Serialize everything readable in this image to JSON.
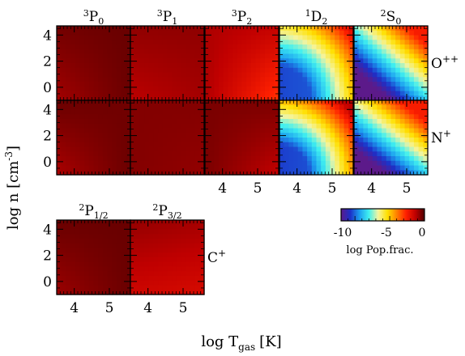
{
  "figure": {
    "ylabel_main": "log n [cm",
    "ylabel_sup": "-3",
    "ylabel_close": "]",
    "xlabel_main": "log T",
    "xlabel_sub": "gas",
    "xlabel_unit": "[K]",
    "colorbar_label": "log Pop.frac.",
    "colorbar_ticks": [
      "-10",
      "-5",
      "0"
    ]
  },
  "chart_data": {
    "type": "heatmap",
    "x": {
      "label": "log T_gas [K]",
      "range": [
        3.5,
        5.6
      ],
      "ticks": [
        4,
        5
      ]
    },
    "y": {
      "label": "log n [cm^-3]",
      "range": [
        -1,
        4.7
      ],
      "ticks": [
        0,
        2,
        4
      ]
    },
    "colorbar": {
      "label": "log Pop.frac.",
      "range": [
        -12,
        0
      ],
      "ticks": [
        -10,
        -5,
        0
      ],
      "colors": [
        "#5c1a8a",
        "#1c30c8",
        "#1ca0f0",
        "#40f0f0",
        "#f4f4a0",
        "#ffe000",
        "#ff8000",
        "#ff2000",
        "#c00000",
        "#500000"
      ]
    },
    "rows": [
      {
        "species": "O",
        "species_sup": "++",
        "panels": [
          {
            "level_sup": "3",
            "level": "P",
            "level_sub": "0",
            "approx_min": -1.0,
            "approx_max": -0.3
          },
          {
            "level_sup": "3",
            "level": "P",
            "level_sub": "1",
            "approx_min": -1.4,
            "approx_max": -0.8
          },
          {
            "level_sup": "3",
            "level": "P",
            "level_sub": "2",
            "approx_min": -2.8,
            "approx_max": -1.1
          },
          {
            "level_sup": "1",
            "level": "D",
            "level_sub": "2",
            "approx_min": -10.0,
            "approx_max": -1.8
          },
          {
            "level_sup": "2",
            "level": "S",
            "level_sub": "0",
            "approx_min": -12.0,
            "approx_max": -2.5
          }
        ]
      },
      {
        "species": "N",
        "species_sup": "+",
        "panels": [
          {
            "level_sup": "",
            "level": "",
            "level_sub": "",
            "approx_min": -1.2,
            "approx_max": -0.3
          },
          {
            "level_sup": "",
            "level": "",
            "level_sub": "",
            "approx_min": -0.8,
            "approx_max": -0.5
          },
          {
            "level_sup": "",
            "level": "",
            "level_sub": "",
            "approx_min": -1.5,
            "approx_max": -0.5
          },
          {
            "level_sup": "",
            "level": "",
            "level_sub": "",
            "approx_min": -10.0,
            "approx_max": -1.3
          },
          {
            "level_sup": "",
            "level": "",
            "level_sub": "",
            "approx_min": -12.0,
            "approx_max": -2.5
          }
        ]
      },
      {
        "species": "C",
        "species_sup": "+",
        "panels": [
          {
            "level_sup": "2",
            "level": "P",
            "level_sub": "1/2",
            "approx_min": -0.9,
            "approx_max": -0.3
          },
          {
            "level_sup": "2",
            "level": "P",
            "level_sub": "3/2",
            "approx_min": -1.8,
            "approx_max": -0.8
          }
        ]
      }
    ]
  }
}
